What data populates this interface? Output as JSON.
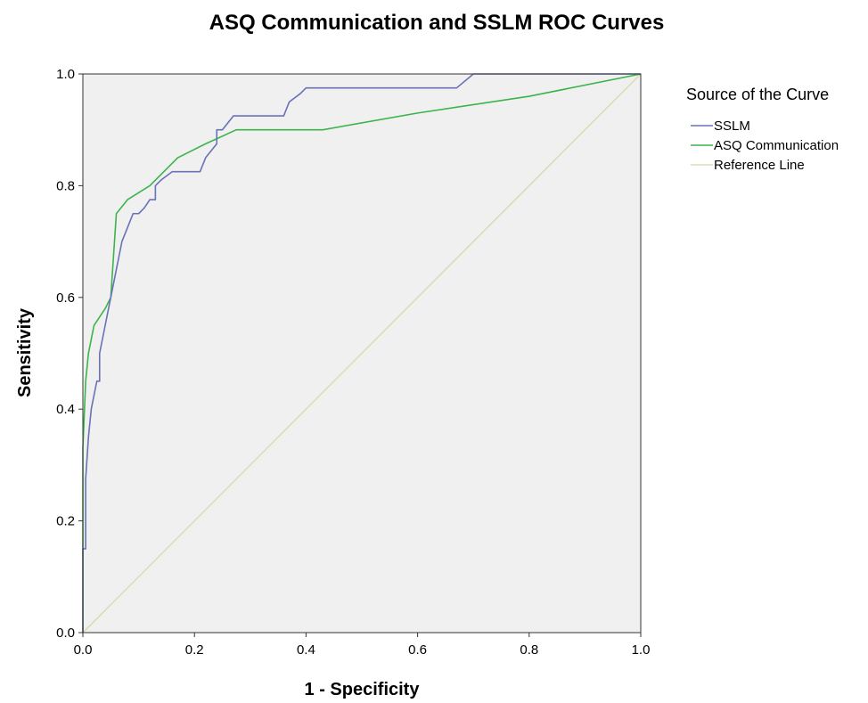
{
  "chart_data": {
    "type": "line",
    "title": "ASQ Communication and SSLM ROC Curves",
    "xlabel": "1 - Specificity",
    "ylabel": "Sensitivity",
    "xlim": [
      0,
      1
    ],
    "ylim": [
      0,
      1
    ],
    "xticks": [
      "0.0",
      "0.2",
      "0.4",
      "0.6",
      "0.8",
      "1.0"
    ],
    "yticks": [
      "0.0",
      "0.2",
      "0.4",
      "0.6",
      "0.8",
      "1.0"
    ],
    "grid": false,
    "legend": {
      "title": "Source of the Curve",
      "position": "right"
    },
    "plot_background": "#f0f0f0",
    "series": [
      {
        "name": "SSLM",
        "color": "#6a72b8",
        "x": [
          0,
          0,
          0.005,
          0.005,
          0.01,
          0.015,
          0.02,
          0.025,
          0.03,
          0.03,
          0.04,
          0.05,
          0.06,
          0.07,
          0.08,
          0.08,
          0.09,
          0.09,
          0.1,
          0.11,
          0.12,
          0.13,
          0.13,
          0.14,
          0.16,
          0.17,
          0.19,
          0.21,
          0.22,
          0.24,
          0.24,
          0.25,
          0.27,
          0.29,
          0.31,
          0.33,
          0.36,
          0.37,
          0.39,
          0.4,
          0.45,
          0.55,
          0.67,
          0.7,
          0.73,
          0.85,
          1.0
        ],
        "y": [
          0,
          0.15,
          0.15,
          0.275,
          0.35,
          0.4,
          0.425,
          0.45,
          0.45,
          0.5,
          0.55,
          0.6,
          0.65,
          0.7,
          0.725,
          0.725,
          0.75,
          0.75,
          0.75,
          0.76,
          0.775,
          0.775,
          0.8,
          0.81,
          0.825,
          0.825,
          0.825,
          0.825,
          0.85,
          0.875,
          0.9,
          0.9,
          0.925,
          0.925,
          0.925,
          0.925,
          0.925,
          0.95,
          0.965,
          0.975,
          0.975,
          0.975,
          0.975,
          1.0,
          1.0,
          1.0,
          1.0
        ]
      },
      {
        "name": "ASQ Communication",
        "color": "#3cb44b",
        "x": [
          0,
          0,
          0.005,
          0.01,
          0.015,
          0.02,
          0.04,
          0.05,
          0.06,
          0.08,
          0.12,
          0.17,
          0.22,
          0.275,
          0.43,
          0.6,
          0.8,
          1.0
        ],
        "y": [
          0,
          0.33,
          0.45,
          0.5,
          0.525,
          0.55,
          0.58,
          0.6,
          0.75,
          0.775,
          0.8,
          0.85,
          0.875,
          0.9,
          0.9,
          0.93,
          0.96,
          1.0
        ]
      },
      {
        "name": "Reference Line",
        "color": "#dcdcb8",
        "x": [
          0,
          1
        ],
        "y": [
          0,
          1
        ]
      }
    ]
  }
}
